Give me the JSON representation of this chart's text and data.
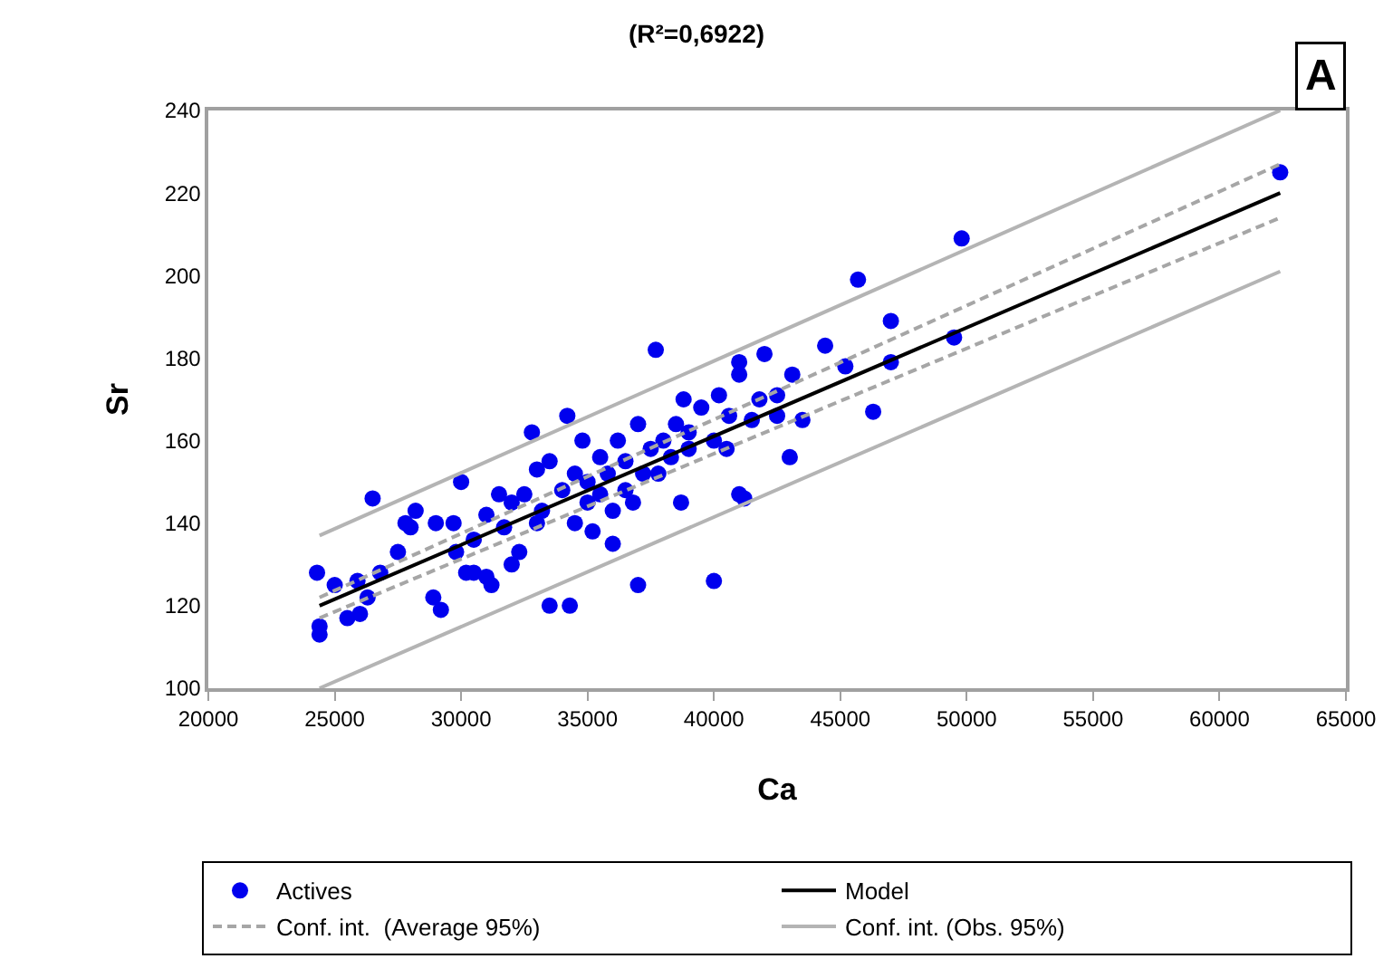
{
  "chart_data": {
    "type": "scatter",
    "title": "(R²=0,6922)",
    "xlabel": "Ca",
    "ylabel": "Sr",
    "xlim": [
      20000,
      65000
    ],
    "xticks": [
      20000,
      25000,
      30000,
      35000,
      40000,
      45000,
      50000,
      55000,
      60000,
      65000
    ],
    "ylim": [
      100,
      240
    ],
    "yticks": [
      100,
      120,
      140,
      160,
      180,
      200,
      220,
      240
    ],
    "grid": false,
    "legend": "bottom",
    "marker": "circle",
    "annotations": [
      "A"
    ],
    "series": [
      {
        "name": "Actives",
        "color": "#0000ee",
        "x": [
          24300,
          24400,
          24400,
          25000,
          25500,
          26000,
          25900,
          26300,
          26500,
          26800,
          27500,
          27800,
          28000,
          28200,
          28900,
          29000,
          29200,
          29700,
          29800,
          30000,
          30200,
          30500,
          30500,
          31000,
          31200,
          31000,
          31500,
          31700,
          32000,
          32000,
          32300,
          32500,
          32800,
          33000,
          33000,
          33200,
          33500,
          33500,
          34000,
          34200,
          34300,
          34500,
          34500,
          34800,
          35000,
          35000,
          35200,
          35500,
          35500,
          35800,
          36000,
          36000,
          36200,
          36500,
          36500,
          36800,
          37000,
          37000,
          37200,
          37500,
          37700,
          37800,
          38000,
          38300,
          38500,
          38700,
          38800,
          39000,
          39000,
          39500,
          40000,
          40000,
          40200,
          40500,
          40600,
          41000,
          41000,
          41000,
          41200,
          41500,
          41800,
          42000,
          42500,
          42500,
          43000,
          43100,
          43500,
          44400,
          45200,
          45700,
          46300,
          47000,
          47000,
          49500,
          49800,
          62400
        ],
        "values": [
          128,
          115,
          113,
          125,
          117,
          118,
          126,
          122,
          146,
          128,
          133,
          140,
          139,
          143,
          122,
          140,
          119,
          140,
          133,
          150,
          128,
          136,
          128,
          127,
          125,
          142,
          147,
          139,
          145,
          130,
          133,
          147,
          162,
          140,
          153,
          143,
          155,
          120,
          148,
          166,
          120,
          140,
          152,
          160,
          145,
          150,
          138,
          156,
          147,
          152,
          143,
          135,
          160,
          148,
          155,
          145,
          125,
          164,
          152,
          158,
          182,
          152,
          160,
          156,
          164,
          145,
          170,
          162,
          158,
          168,
          126,
          160,
          171,
          158,
          166,
          176,
          179,
          147,
          146,
          165,
          170,
          181,
          171,
          166,
          156,
          176,
          165,
          183,
          178,
          199,
          167,
          189,
          179,
          185,
          209,
          225
        ]
      },
      {
        "name": "Model",
        "type": "line",
        "color": "#000000",
        "line_style": "solid",
        "marker": "none",
        "x": [
          24400,
          62400
        ],
        "values": [
          120,
          220
        ]
      },
      {
        "name": "Conf. int.  (Average 95%)",
        "type": "line",
        "color": "#a6a6a6",
        "line_style": "dashed",
        "marker": "none",
        "x": [
          24400,
          62400
        ],
        "values": [
          122,
          227
        ]
      },
      {
        "type": "line",
        "color": "#a6a6a6",
        "line_style": "dashed",
        "marker": "none",
        "x": [
          24400,
          62400
        ],
        "values": [
          117,
          214
        ]
      },
      {
        "name": "Conf. int. (Obs. 95%)",
        "type": "line",
        "color": "#b4b4b4",
        "line_style": "solid",
        "marker": "none",
        "x": [
          24400,
          62400
        ],
        "values": [
          137,
          240
        ]
      },
      {
        "type": "line",
        "color": "#b4b4b4",
        "line_style": "solid",
        "marker": "none",
        "x": [
          24400,
          62400
        ],
        "values": [
          100,
          201
        ]
      }
    ]
  }
}
